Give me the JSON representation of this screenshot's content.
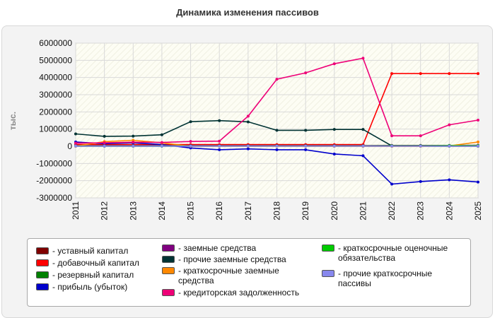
{
  "chart_data": {
    "type": "line",
    "title": "Динамика изменения пассивов",
    "ylabel": "тыс.",
    "xlabel": "",
    "x": [
      "2011",
      "2012",
      "2013",
      "2014",
      "2015",
      "2016",
      "2017",
      "2018",
      "2019",
      "2020",
      "2021",
      "2022",
      "2023",
      "2024",
      "2025"
    ],
    "ylim": [
      -3000000,
      6000000
    ],
    "yticks": [
      6000000,
      5000000,
      4000000,
      3000000,
      2000000,
      1000000,
      0,
      -1000000,
      -2000000,
      -3000000
    ],
    "ytick_labels": [
      "6000000",
      "5000000",
      "4000000",
      "3000000",
      "2000000",
      "1000000",
      "0",
      "-1000000",
      "-2000000",
      "-3000000"
    ],
    "grid": true,
    "legend_position": "bottom",
    "series": [
      {
        "name": "- уставный капитал",
        "color": "#800000",
        "values": [
          10000,
          10000,
          10000,
          10000,
          10000,
          10000,
          10000,
          10000,
          10000,
          10000,
          10000,
          10000,
          10000,
          10000,
          10000
        ]
      },
      {
        "name": "- добавочный капитал",
        "color": "#ff0000",
        "values": [
          100000,
          100000,
          100000,
          100000,
          100000,
          100000,
          100000,
          100000,
          100000,
          100000,
          100000,
          4230000,
          4230000,
          4230000,
          4230000
        ]
      },
      {
        "name": "- резервный капитал",
        "color": "#008000",
        "values": [
          5000,
          5000,
          5000,
          5000,
          5000,
          5000,
          5000,
          5000,
          5000,
          5000,
          5000,
          5000,
          5000,
          5000,
          5000
        ]
      },
      {
        "name": "- прибыль (убыток)",
        "color": "#0000cc",
        "values": [
          250000,
          150000,
          200000,
          100000,
          -100000,
          -200000,
          -150000,
          -200000,
          -200000,
          -450000,
          -550000,
          -2200000,
          -2050000,
          -1950000,
          -2080000
        ]
      },
      {
        "name": "- заемные средства",
        "color": "#800080",
        "values": [
          40000,
          40000,
          40000,
          40000,
          40000,
          40000,
          40000,
          40000,
          40000,
          40000,
          40000,
          50000,
          50000,
          50000,
          60000
        ]
      },
      {
        "name": "- прочие заемные средства",
        "color": "#003333",
        "values": [
          720000,
          580000,
          590000,
          670000,
          1430000,
          1490000,
          1420000,
          930000,
          930000,
          980000,
          980000,
          20000,
          20000,
          20000,
          20000
        ]
      },
      {
        "name": "- краткосрочные заемные средства",
        "color": "#ff8800",
        "values": [
          0,
          270000,
          350000,
          200000,
          0,
          0,
          0,
          0,
          0,
          0,
          0,
          0,
          0,
          20000,
          250000
        ]
      },
      {
        "name": "- кредиторская задолженность",
        "color": "#ee0077",
        "values": [
          180000,
          200000,
          240000,
          220000,
          280000,
          300000,
          1750000,
          3900000,
          4270000,
          4800000,
          5120000,
          610000,
          610000,
          1250000,
          1520000
        ]
      },
      {
        "name": "- краткосрочные оценочные обязательства",
        "color": "#00cc00",
        "values": [
          20000,
          20000,
          20000,
          20000,
          20000,
          20000,
          20000,
          20000,
          20000,
          20000,
          20000,
          30000,
          30000,
          40000,
          40000
        ]
      },
      {
        "name": "- прочие краткосрочные пассивы",
        "color": "#8888ee",
        "values": [
          10000,
          10000,
          10000,
          10000,
          10000,
          10000,
          10000,
          10000,
          10000,
          10000,
          10000,
          10000,
          10000,
          10000,
          10000
        ]
      }
    ]
  }
}
